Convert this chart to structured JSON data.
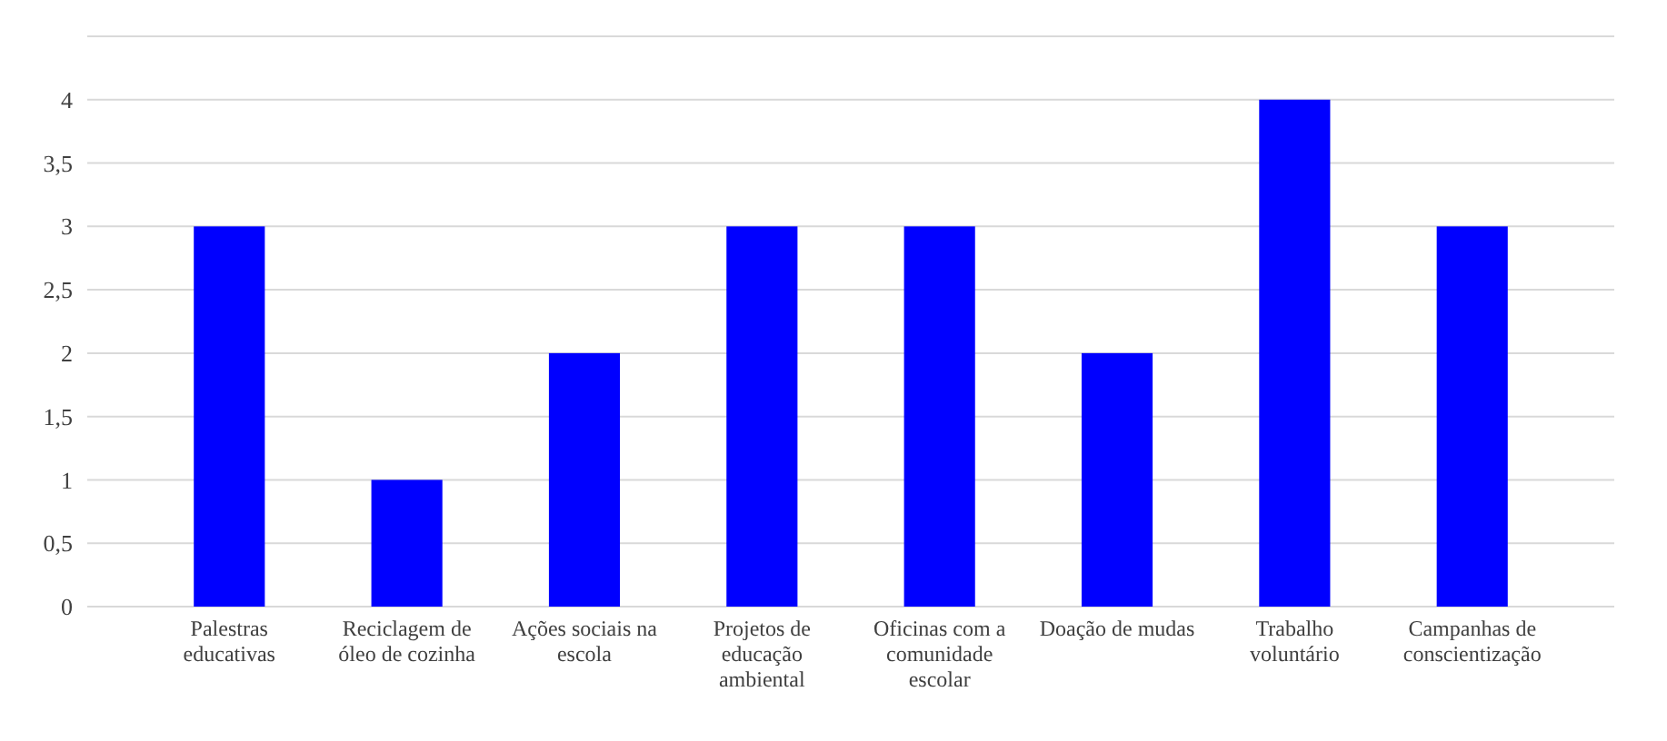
{
  "chart_data": {
    "type": "bar",
    "categories": [
      "Palestras educativas",
      "Reciclagem de óleo de cozinha",
      "Ações sociais na escola",
      "Projetos de educação ambiental",
      "Oficinas com a comunidade escolar",
      "Doação de mudas",
      "Trabalho voluntário",
      "Campanhas de conscientização"
    ],
    "values": [
      3,
      1,
      2,
      3,
      3,
      2,
      4,
      3
    ],
    "color": "#0000ff",
    "ylim": [
      0,
      4.5
    ],
    "yticks": [
      0,
      {
        "value": 0.5,
        "label": "0,5"
      },
      1,
      {
        "value": 1.5,
        "label": "1,5"
      },
      2,
      {
        "value": 2.5,
        "label": "2,5"
      },
      3,
      {
        "value": 3.5,
        "label": "3,5"
      },
      4,
      {
        "value": 4.5,
        "label": null
      }
    ],
    "grid": true
  }
}
